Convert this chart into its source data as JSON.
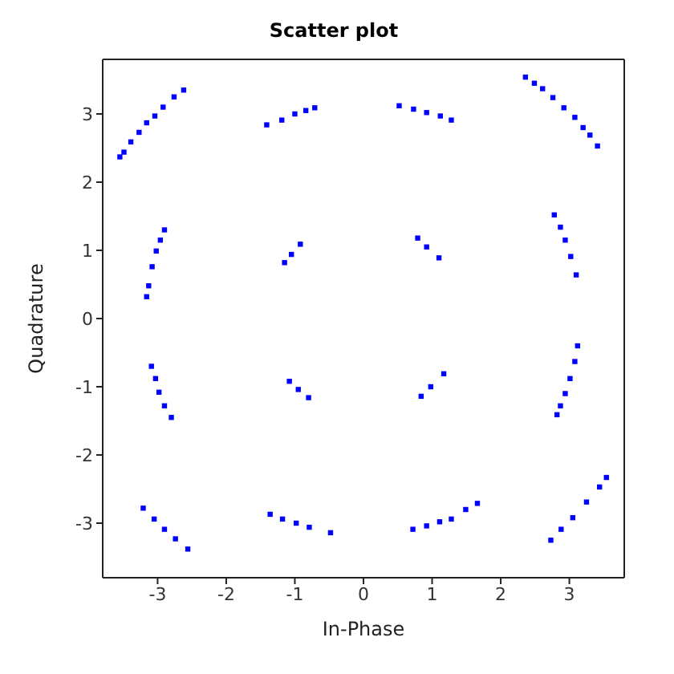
{
  "chart_data": {
    "type": "scatter",
    "title": "Scatter plot",
    "xlabel": "In-Phase",
    "ylabel": "Quadrature",
    "xlim": [
      -3.8,
      3.8
    ],
    "ylim": [
      -3.8,
      3.8
    ],
    "xticks": [
      -3,
      -2,
      -1,
      0,
      1,
      2,
      3
    ],
    "yticks": [
      -3,
      -2,
      -1,
      0,
      1,
      2,
      3
    ],
    "marker": "square",
    "series": [
      {
        "color": "#0000ff",
        "x": [
          -3.55,
          -3.49,
          -3.39,
          -3.27,
          -3.16,
          -3.04,
          -2.92,
          -2.76,
          -2.62,
          -1.41,
          -1.19,
          -1.0,
          -0.84,
          -0.71,
          -3.16,
          -3.13,
          -3.08,
          -3.02,
          -2.96,
          -2.9,
          -1.15,
          -1.05,
          -0.92,
          0.52,
          0.73,
          0.92,
          1.12,
          1.28,
          2.36,
          2.49,
          2.61,
          2.76,
          2.92,
          3.08,
          3.2,
          3.3,
          3.41,
          0.79,
          0.92,
          1.1,
          2.78,
          2.87,
          2.94,
          3.02,
          3.1,
          -3.09,
          -3.03,
          -2.98,
          -2.9,
          -2.8,
          -1.08,
          -0.95,
          -0.8,
          -3.21,
          -3.05,
          -2.9,
          -2.74,
          -2.56,
          -1.36,
          -1.18,
          -0.98,
          -0.79,
          -0.48,
          0.84,
          0.98,
          1.17,
          2.82,
          2.87,
          2.94,
          3.01,
          3.08,
          3.12,
          0.72,
          0.92,
          1.11,
          1.28,
          1.49,
          1.66,
          2.73,
          2.88,
          3.05,
          3.25,
          3.44,
          3.54
        ],
        "values": [
          2.37,
          2.44,
          2.59,
          2.73,
          2.87,
          2.97,
          3.1,
          3.25,
          3.35,
          2.84,
          2.91,
          3.0,
          3.05,
          3.09,
          0.32,
          0.48,
          0.76,
          0.99,
          1.15,
          1.3,
          0.82,
          0.94,
          1.09,
          3.12,
          3.07,
          3.02,
          2.97,
          2.91,
          3.54,
          3.45,
          3.37,
          3.24,
          3.09,
          2.95,
          2.8,
          2.69,
          2.53,
          1.18,
          1.05,
          0.89,
          1.52,
          1.34,
          1.15,
          0.91,
          0.64,
          -0.7,
          -0.88,
          -1.08,
          -1.28,
          -1.45,
          -0.92,
          -1.04,
          -1.16,
          -2.78,
          -2.94,
          -3.09,
          -3.23,
          -3.38,
          -2.87,
          -2.94,
          -3.0,
          -3.06,
          -3.14,
          -1.14,
          -1.0,
          -0.81,
          -1.41,
          -1.28,
          -1.1,
          -0.88,
          -0.63,
          -0.4,
          -3.09,
          -3.04,
          -2.98,
          -2.94,
          -2.8,
          -2.71,
          -3.25,
          -3.09,
          -2.92,
          -2.69,
          -2.47,
          -2.33
        ]
      }
    ]
  }
}
